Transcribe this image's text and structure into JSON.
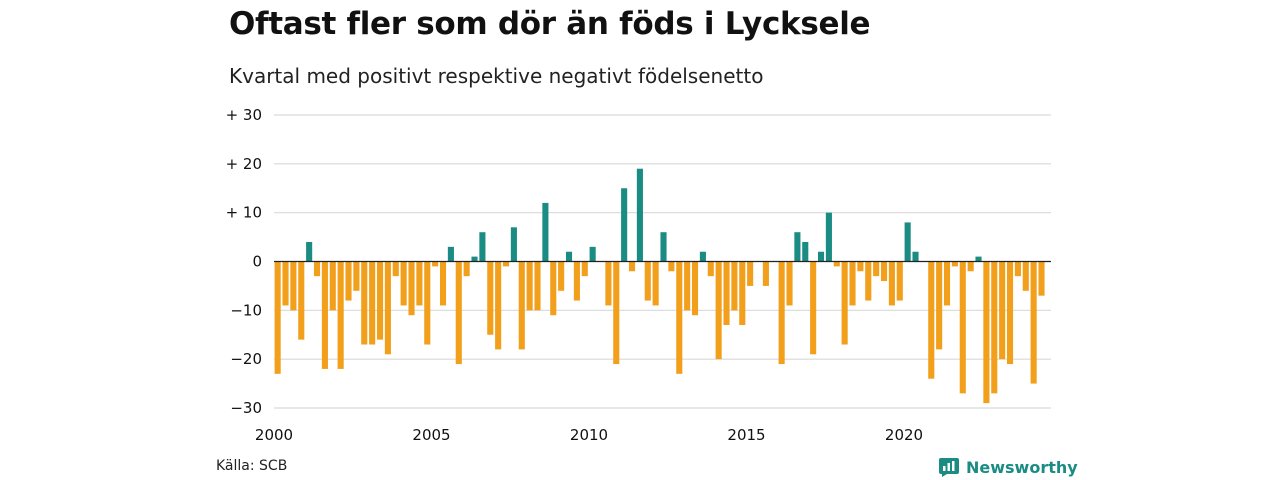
{
  "title": "Oftast fler som dör än föds i Lycksele",
  "subtitle": "Kvartal med positivt respektive negativt födelsenetto",
  "source": "Källa: SCB",
  "brand": {
    "name": "Newsworthy",
    "logo_icon": "newsworthy-logo-icon"
  },
  "colors": {
    "positive": "#1a8c84",
    "negative": "#f29f1c",
    "grid": "#d9d9d9",
    "zero_line": "#222222",
    "text": "#111111"
  },
  "chart_data": {
    "type": "bar",
    "title": "Oftast fler som dör än föds i Lycksele",
    "subtitle": "Kvartal med positivt respektive negativt födelsenetto",
    "xlabel": "",
    "ylabel": "",
    "ylim": [
      -30,
      30
    ],
    "y_ticks": [
      30,
      20,
      10,
      0,
      -10,
      -20,
      -30
    ],
    "y_tick_labels": [
      "+ 30",
      "+ 20",
      "+ 10",
      "0",
      "−10",
      "−20",
      "−30"
    ],
    "x_ticks": [
      2000,
      2005,
      2010,
      2015,
      2020
    ],
    "x_tick_labels": [
      "2000",
      "2005",
      "2010",
      "2015",
      "2020"
    ],
    "grid": true,
    "first_period": "2000 Q1",
    "last_period": "2024 Q2",
    "values": [
      -23,
      -9,
      -10,
      -16,
      4,
      -3,
      -22,
      -10,
      -22,
      -8,
      -6,
      -17,
      -17,
      -16,
      -19,
      -3,
      -9,
      -11,
      -9,
      -17,
      -1,
      -9,
      3,
      -21,
      -3,
      1,
      6,
      -15,
      -18,
      -1,
      7,
      -18,
      -10,
      -10,
      12,
      -11,
      -6,
      2,
      -8,
      -3,
      3,
      0,
      -9,
      -21,
      15,
      -2,
      19,
      -8,
      -9,
      6,
      -2,
      -23,
      -10,
      -11,
      2,
      -3,
      -20,
      -13,
      -10,
      -13,
      -5,
      0,
      -5,
      0,
      -21,
      -9,
      6,
      4,
      -19,
      2,
      10,
      -1,
      -17,
      -9,
      -2,
      -8,
      -3,
      -4,
      -9,
      -8,
      8,
      2,
      0,
      -24,
      -18,
      -9,
      -1,
      -27,
      -2,
      1,
      -29,
      -27,
      -20,
      -21,
      -3,
      -6,
      -25,
      -7
    ]
  }
}
